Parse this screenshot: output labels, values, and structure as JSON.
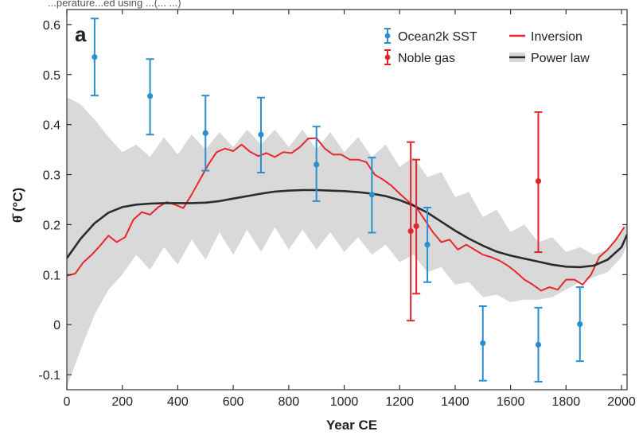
{
  "top_caption": "...perature...ed using ...(... ...)",
  "bottom_caption": "",
  "chart_data": {
    "type": "line",
    "panel_label": "a",
    "xlabel": "Year CE",
    "ylabel": "θ̄ (°C)",
    "xlim": [
      0,
      2020
    ],
    "ylim": [
      -0.13,
      0.63
    ],
    "x_ticks": [
      0,
      200,
      400,
      600,
      800,
      1000,
      1200,
      1400,
      1600,
      1800,
      2000
    ],
    "y_ticks": [
      -0.1,
      0,
      0.1,
      0.2,
      0.3,
      0.4,
      0.5,
      0.6
    ],
    "y_tick_labels": [
      "-0.1",
      "0",
      "0.1",
      "0.2",
      "0.3",
      "0.4",
      "0.5",
      "0.6"
    ],
    "grid": false,
    "legend_position": "top-right",
    "legend": [
      {
        "label": "Ocean2k SST",
        "kind": "errorbar",
        "color": "#2a8fd0"
      },
      {
        "label": "Noble gas",
        "kind": "errorbar",
        "color": "#e0262b"
      },
      {
        "label": "Inversion",
        "kind": "line",
        "color": "#e8262d"
      },
      {
        "label": "Power law",
        "kind": "band",
        "color": "#2b2b2b",
        "fill": "#d9d9d9"
      }
    ],
    "ocean2k_sst": [
      {
        "x": 100,
        "y": 0.535,
        "lo": 0.458,
        "hi": 0.612
      },
      {
        "x": 300,
        "y": 0.457,
        "lo": 0.38,
        "hi": 0.531
      },
      {
        "x": 500,
        "y": 0.383,
        "lo": 0.308,
        "hi": 0.458
      },
      {
        "x": 700,
        "y": 0.38,
        "lo": 0.304,
        "hi": 0.454
      },
      {
        "x": 900,
        "y": 0.32,
        "lo": 0.247,
        "hi": 0.396
      },
      {
        "x": 1100,
        "y": 0.26,
        "lo": 0.184,
        "hi": 0.334
      },
      {
        "x": 1300,
        "y": 0.16,
        "lo": 0.085,
        "hi": 0.234
      },
      {
        "x": 1500,
        "y": -0.037,
        "lo": -0.112,
        "hi": 0.037
      },
      {
        "x": 1700,
        "y": -0.04,
        "lo": -0.114,
        "hi": 0.034
      },
      {
        "x": 1850,
        "y": 0.001,
        "lo": -0.073,
        "hi": 0.075
      }
    ],
    "noble_gas": [
      {
        "x": 1240,
        "y": 0.187,
        "lo": 0.008,
        "hi": 0.365
      },
      {
        "x": 1260,
        "y": 0.197,
        "lo": 0.062,
        "hi": 0.33
      },
      {
        "x": 1700,
        "y": 0.287,
        "lo": 0.145,
        "hi": 0.425
      }
    ],
    "inversion": {
      "x": [
        0,
        30,
        60,
        90,
        120,
        150,
        180,
        210,
        240,
        270,
        300,
        330,
        360,
        390,
        420,
        450,
        480,
        510,
        540,
        570,
        600,
        630,
        660,
        690,
        720,
        750,
        780,
        810,
        840,
        870,
        900,
        930,
        960,
        990,
        1020,
        1050,
        1080,
        1110,
        1140,
        1170,
        1200,
        1230,
        1260,
        1290,
        1320,
        1350,
        1380,
        1410,
        1440,
        1470,
        1500,
        1530,
        1560,
        1590,
        1620,
        1650,
        1680,
        1710,
        1740,
        1770,
        1800,
        1830,
        1860,
        1890,
        1920,
        1950,
        1980,
        2010
      ],
      "y": [
        0.098,
        0.102,
        0.125,
        0.14,
        0.158,
        0.178,
        0.165,
        0.175,
        0.21,
        0.225,
        0.22,
        0.235,
        0.245,
        0.24,
        0.233,
        0.26,
        0.29,
        0.32,
        0.345,
        0.352,
        0.347,
        0.36,
        0.346,
        0.337,
        0.343,
        0.335,
        0.345,
        0.343,
        0.355,
        0.372,
        0.373,
        0.352,
        0.34,
        0.34,
        0.33,
        0.33,
        0.325,
        0.3,
        0.29,
        0.278,
        0.262,
        0.247,
        0.235,
        0.21,
        0.185,
        0.165,
        0.17,
        0.15,
        0.16,
        0.15,
        0.14,
        0.135,
        0.128,
        0.118,
        0.105,
        0.09,
        0.08,
        0.068,
        0.075,
        0.07,
        0.09,
        0.09,
        0.08,
        0.1,
        0.135,
        0.15,
        0.17,
        0.195
      ]
    },
    "power_law": {
      "x": [
        0,
        50,
        100,
        150,
        200,
        250,
        300,
        350,
        400,
        450,
        500,
        550,
        600,
        650,
        700,
        750,
        800,
        850,
        900,
        950,
        1000,
        1050,
        1100,
        1150,
        1200,
        1250,
        1300,
        1350,
        1400,
        1450,
        1500,
        1550,
        1600,
        1650,
        1700,
        1750,
        1800,
        1850,
        1900,
        1950,
        2000,
        2020
      ],
      "y": [
        0.133,
        0.172,
        0.203,
        0.224,
        0.235,
        0.24,
        0.242,
        0.243,
        0.243,
        0.243,
        0.244,
        0.247,
        0.252,
        0.257,
        0.262,
        0.266,
        0.268,
        0.269,
        0.269,
        0.268,
        0.267,
        0.265,
        0.262,
        0.257,
        0.249,
        0.238,
        0.224,
        0.206,
        0.188,
        0.172,
        0.158,
        0.146,
        0.138,
        0.132,
        0.126,
        0.12,
        0.116,
        0.115,
        0.118,
        0.13,
        0.155,
        0.18
      ]
    },
    "power_law_band": {
      "x": [
        0,
        50,
        100,
        150,
        200,
        250,
        300,
        350,
        400,
        450,
        500,
        550,
        600,
        650,
        700,
        750,
        800,
        850,
        900,
        950,
        1000,
        1050,
        1100,
        1150,
        1200,
        1250,
        1300,
        1350,
        1400,
        1450,
        1500,
        1550,
        1600,
        1650,
        1700,
        1750,
        1800,
        1850,
        1900,
        1950,
        2000,
        2020
      ],
      "upper": [
        0.455,
        0.44,
        0.41,
        0.375,
        0.345,
        0.36,
        0.335,
        0.375,
        0.34,
        0.38,
        0.35,
        0.385,
        0.355,
        0.39,
        0.36,
        0.39,
        0.355,
        0.39,
        0.35,
        0.385,
        0.345,
        0.375,
        0.335,
        0.36,
        0.315,
        0.335,
        0.295,
        0.305,
        0.255,
        0.265,
        0.215,
        0.23,
        0.185,
        0.2,
        0.165,
        0.175,
        0.145,
        0.155,
        0.14,
        0.15,
        0.185,
        0.205
      ],
      "lower": [
        -0.125,
        -0.05,
        0.02,
        0.07,
        0.1,
        0.14,
        0.11,
        0.155,
        0.12,
        0.17,
        0.13,
        0.185,
        0.14,
        0.19,
        0.145,
        0.195,
        0.15,
        0.19,
        0.15,
        0.185,
        0.145,
        0.175,
        0.14,
        0.16,
        0.125,
        0.14,
        0.105,
        0.115,
        0.08,
        0.085,
        0.055,
        0.06,
        0.045,
        0.05,
        0.05,
        0.055,
        0.07,
        0.085,
        0.095,
        0.105,
        0.135,
        0.16
      ]
    }
  }
}
